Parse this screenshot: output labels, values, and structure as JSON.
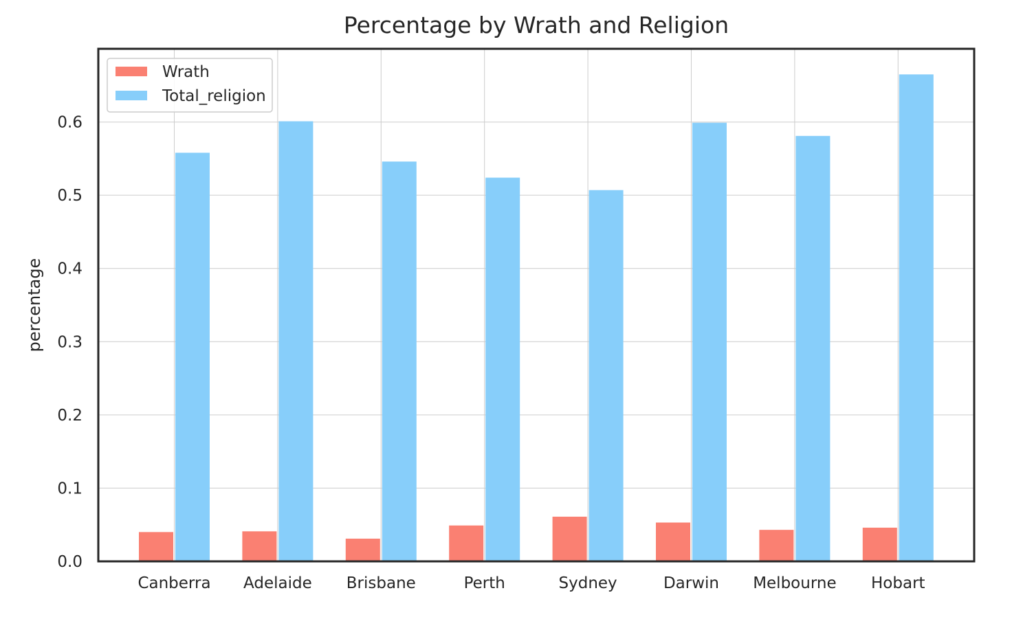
{
  "chart_data": {
    "type": "bar",
    "title": "Percentage by Wrath and Religion",
    "xlabel": "",
    "ylabel": "percentage",
    "categories": [
      "Canberra",
      "Adelaide",
      "Brisbane",
      "Perth",
      "Sydney",
      "Darwin",
      "Melbourne",
      "Hobart"
    ],
    "series": [
      {
        "name": "Wrath",
        "color": "#fa8072",
        "values": [
          0.04,
          0.041,
          0.031,
          0.049,
          0.061,
          0.053,
          0.043,
          0.046
        ]
      },
      {
        "name": "Total_religion",
        "color": "#87cefa",
        "values": [
          0.558,
          0.601,
          0.546,
          0.524,
          0.507,
          0.599,
          0.581,
          0.665
        ]
      }
    ],
    "ylim": [
      0,
      0.7
    ],
    "yticks": [
      "0.0",
      "0.1",
      "0.2",
      "0.3",
      "0.4",
      "0.5",
      "0.6"
    ],
    "grid": true,
    "legend_position": "top-left"
  }
}
